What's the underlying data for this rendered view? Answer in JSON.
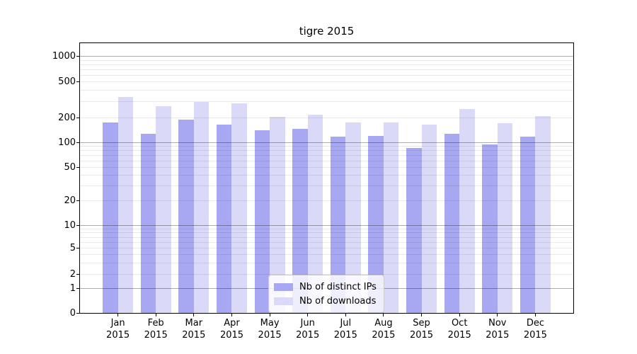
{
  "chart_data": {
    "type": "bar",
    "title": "tigre 2015",
    "xlabel": "",
    "ylabel": "",
    "categories": [
      "Jan 2015",
      "Feb 2015",
      "Mar 2015",
      "Apr 2015",
      "May 2015",
      "Jun 2015",
      "Jul 2015",
      "Aug 2015",
      "Sep 2015",
      "Oct 2015",
      "Nov 2015",
      "Dec 2015"
    ],
    "series": [
      {
        "name": "Nb of distinct IPs",
        "color": "#a8a8f2",
        "values": [
          175,
          128,
          188,
          165,
          139,
          147,
          117,
          119,
          86,
          126,
          94,
          117
        ]
      },
      {
        "name": "Nb of downloads",
        "color": "#dadaf8",
        "values": [
          335,
          265,
          298,
          287,
          203,
          215,
          175,
          175,
          165,
          250,
          171,
          207
        ]
      }
    ],
    "y_axis": {
      "scale": "symlog",
      "ylim": [
        0,
        1400
      ],
      "tick_values": [
        0,
        1,
        2,
        5,
        10,
        20,
        50,
        100,
        200,
        500,
        1000
      ],
      "tick_labels": [
        "0",
        "1",
        "2",
        "5",
        "10",
        "20",
        "50",
        "100",
        "200",
        "500",
        "1000"
      ],
      "scale_anchors": [
        [
          0,
          0
        ],
        [
          1,
          0.0919
        ],
        [
          2,
          0.1444
        ],
        [
          5,
          0.2415
        ],
        [
          10,
          0.3255
        ],
        [
          20,
          0.4173
        ],
        [
          50,
          0.5407
        ],
        [
          100,
          0.6325
        ],
        [
          200,
          0.7244
        ],
        [
          500,
          0.8583
        ],
        [
          1000,
          0.9528
        ],
        [
          1400,
          1.0
        ]
      ]
    },
    "grid": {
      "on": true,
      "major_values": [
        1,
        10,
        100,
        1000
      ],
      "minor_values": [
        2,
        3,
        4,
        5,
        6,
        7,
        8,
        9,
        20,
        30,
        40,
        50,
        60,
        70,
        80,
        90,
        200,
        300,
        400,
        500,
        600,
        700,
        800,
        900
      ]
    },
    "legend": {
      "position": "lower center",
      "items_from_series": true
    }
  },
  "colors": {
    "background": "#ffffff",
    "axis_spine": "#000000",
    "grid_major": "rgba(0,0,0,0.33)",
    "grid_minor": "rgba(0,0,0,0.085)",
    "bar_distinct_ips": "#a8a8f2",
    "bar_downloads": "#dadaf8",
    "legend_bg": "rgba(255,255,255,0.8)",
    "legend_border": "#cccccc"
  }
}
